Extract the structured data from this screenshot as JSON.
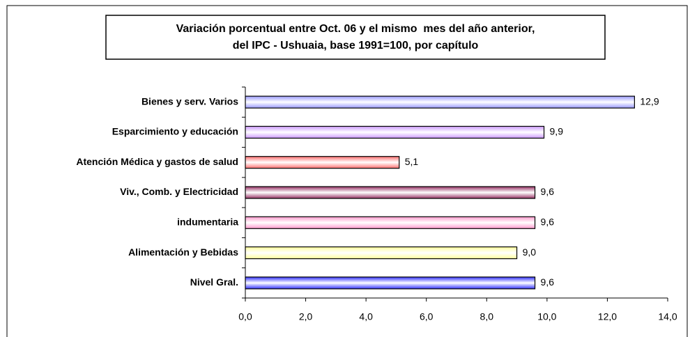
{
  "chart_data": {
    "type": "bar",
    "orientation": "horizontal",
    "title": [
      "Variación porcentual entre Oct. 06 y el mismo  mes del año anterior,",
      "del IPC - Ushuaia, base 1991=100, por capítulo"
    ],
    "categories": [
      "Bienes y serv. Varios",
      "Esparcimiento y educación",
      "Atención Médica y gastos de salud",
      "Viv., Comb. y Electricidad",
      "indumentaria",
      "Alimentación y Bebidas",
      "Nivel Gral."
    ],
    "values": [
      12.9,
      9.9,
      5.1,
      9.6,
      9.6,
      9.0,
      9.6
    ],
    "value_labels": [
      "12,9",
      "9,9",
      "5,1",
      "9,6",
      "9,6",
      "9,0",
      "9,6"
    ],
    "colors": [
      "#9999ff",
      "#cc99ff",
      "#ff7070",
      "#993366",
      "#ff99cc",
      "#ffff99",
      "#3333ff"
    ],
    "xlim": [
      0,
      14
    ],
    "xticks": [
      {
        "value": 0,
        "label": "0,0"
      },
      {
        "value": 2,
        "label": "2,0"
      },
      {
        "value": 4,
        "label": "4,0"
      },
      {
        "value": 6,
        "label": "6,0"
      },
      {
        "value": 8,
        "label": "8,0"
      },
      {
        "value": 10,
        "label": "10,0"
      },
      {
        "value": 12,
        "label": "12,0"
      },
      {
        "value": 14,
        "label": "14,0"
      }
    ],
    "grid": false
  }
}
